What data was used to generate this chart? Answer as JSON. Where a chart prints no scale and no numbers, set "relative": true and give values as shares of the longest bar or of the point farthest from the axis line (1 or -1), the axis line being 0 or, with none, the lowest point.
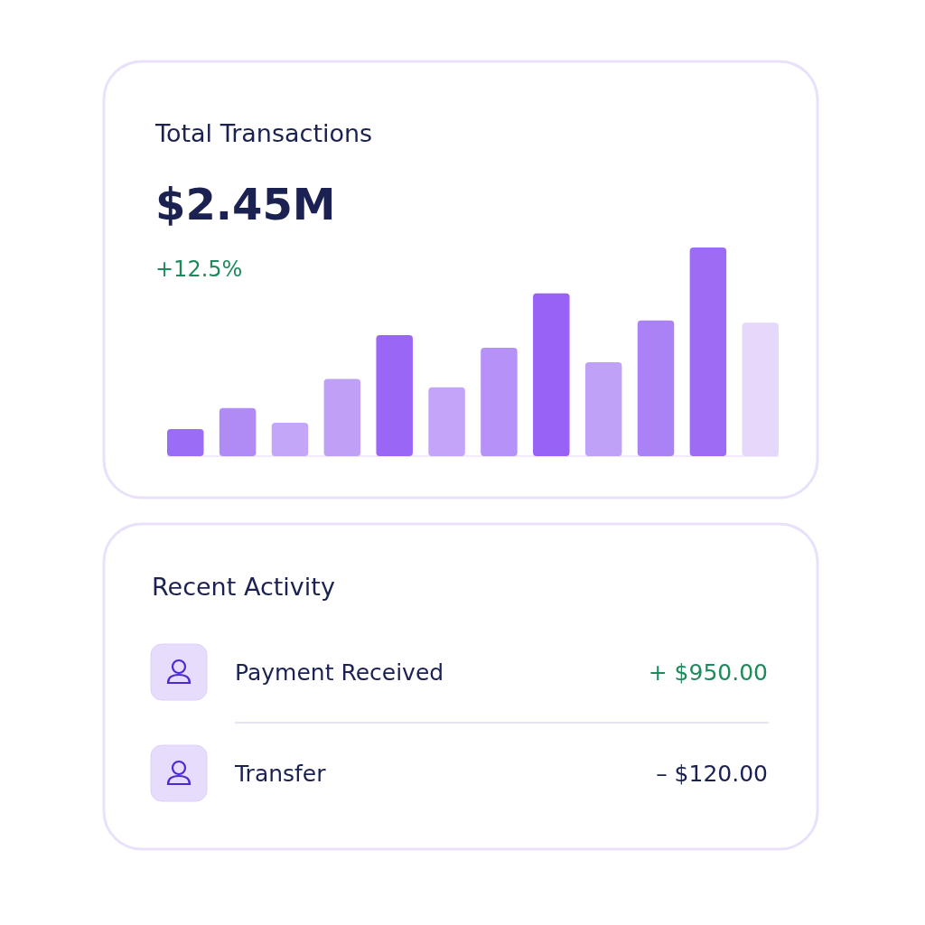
{
  "chart_data": [
    {
      "type": "bar",
      "title": "Total Transactions",
      "subtitle": "$2.45M",
      "annotations": [
        "+12.5%"
      ],
      "relative": true,
      "categories": [
        null,
        null,
        null,
        null,
        null,
        null,
        null,
        null,
        null,
        null,
        null,
        null
      ],
      "values": [
        0.13,
        0.23,
        0.16,
        0.37,
        0.58,
        0.33,
        0.52,
        0.78,
        0.45,
        0.65,
        1,
        0.64
      ],
      "colors": [
        "#9b6cf5",
        "#b08af5",
        "#c4a6f8",
        "#c0a0f7",
        "#9a66f5",
        "#c3a4f8",
        "#b691f7",
        "#9962f6",
        "#c0a1f8",
        "#ab82f6",
        "#9d6cf5",
        "#e6d8fb"
      ]
    },
    {
      "type": "other",
      "title": "Recent Activity",
      "annotations": [
        "Payment Received",
        "+ $950.00",
        "Transfer",
        "– $120.00"
      ]
    }
  ]
}
